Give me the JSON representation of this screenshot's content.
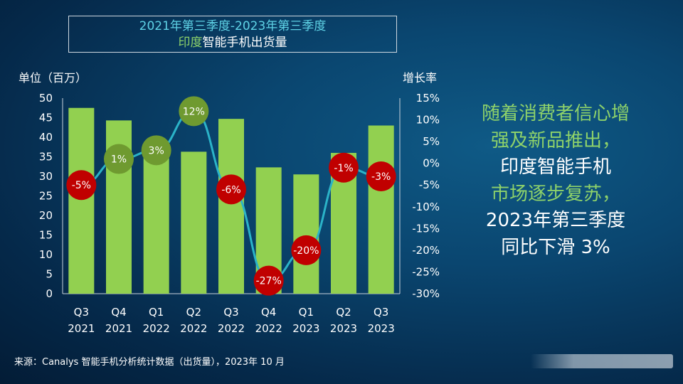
{
  "title": {
    "line1": "2021年第三季度-2023年第三季度",
    "line2_highlight": "印度",
    "line2_rest": "智能手机出货量"
  },
  "left_axis_label": "单位（百万）",
  "right_axis_label": "增长率",
  "side_text": {
    "line1": "随着消费者信心增",
    "line2": "强及新品推出，",
    "line3": "印度智能手机",
    "line4": "市场逐步复苏，",
    "line5": "2023年第三季度",
    "line6": "同比下滑 3%"
  },
  "source": "来源：Canalys 智能手机分析统计数据（出货量），2023年 10 月",
  "colors": {
    "bar": "#92d050",
    "line": "#2bb3c8",
    "positive_marker": "#6f9a30",
    "negative_marker": "#c00000"
  },
  "chart_data": {
    "type": "bar",
    "categories": [
      {
        "q": "Q3",
        "y": "2021"
      },
      {
        "q": "Q4",
        "y": "2021"
      },
      {
        "q": "Q1",
        "y": "2022"
      },
      {
        "q": "Q2",
        "y": "2022"
      },
      {
        "q": "Q3",
        "y": "2022"
      },
      {
        "q": "Q4",
        "y": "2022"
      },
      {
        "q": "Q1",
        "y": "2023"
      },
      {
        "q": "Q2",
        "y": "2023"
      },
      {
        "q": "Q3",
        "y": "2023"
      }
    ],
    "series": [
      {
        "values": [
          47.5,
          44.3,
          37.5,
          36.3,
          44.7,
          32.3,
          30.5,
          36.0,
          43.0
        ]
      },
      {
        "values": [
          -5,
          1,
          3,
          12,
          -6,
          -27,
          -20,
          -1,
          -3
        ],
        "labels": [
          "-5%",
          "1%",
          "3%",
          "12%",
          "-6%",
          "-27%",
          "-20%",
          "-1%",
          "-3%"
        ]
      }
    ],
    "left_axis": {
      "ylim": [
        0,
        50
      ],
      "ticks": [
        "50",
        "45",
        "40",
        "35",
        "30",
        "25",
        "20",
        "15",
        "10",
        "5",
        "0"
      ]
    },
    "right_axis": {
      "ylim": [
        -30,
        15
      ],
      "ticks": [
        "15%",
        "10%",
        "5%",
        "0%",
        "-5%",
        "-10%",
        "-15%",
        "-20%",
        "-25%",
        "-30%"
      ]
    }
  }
}
